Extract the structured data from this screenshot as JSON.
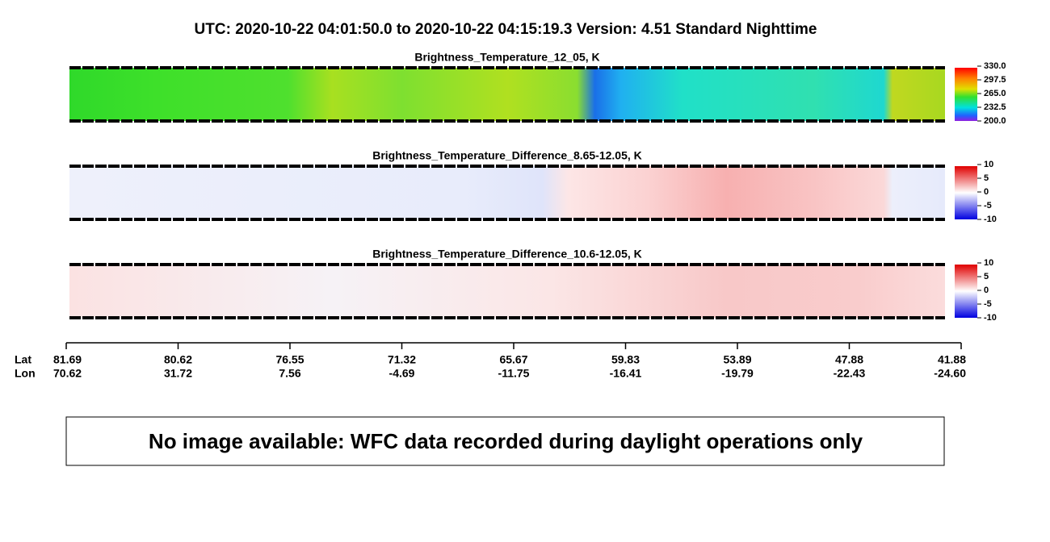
{
  "header": {
    "title": "UTC:  2020-10-22   04:01:50.0  to  2020-10-22   04:15:19.3    Version: 4.51  Standard Nighttime"
  },
  "panels": [
    {
      "title": "Brightness_Temperature_12_05, K",
      "colorbar_labels": [
        "330.0",
        "297.5",
        "265.0",
        "232.5",
        "200.0"
      ]
    },
    {
      "title": "Brightness_Temperature_Difference_8.65-12.05, K",
      "colorbar_labels": [
        "10",
        "5",
        "0",
        "-5",
        "-10"
      ]
    },
    {
      "title": "Brightness_Temperature_Difference_10.6-12.05, K",
      "colorbar_labels": [
        "10",
        "5",
        "0",
        "-5",
        "-10"
      ]
    }
  ],
  "axis": {
    "lat_label": "Lat",
    "lon_label": "Lon",
    "lat": [
      "81.69",
      "80.62",
      "76.55",
      "71.32",
      "65.67",
      "59.83",
      "53.89",
      "47.88",
      "41.88"
    ],
    "lon": [
      "70.62",
      "31.72",
      "7.56",
      "-4.69",
      "-11.75",
      "-16.41",
      "-19.79",
      "-22.43",
      "-24.60"
    ]
  },
  "message": "No image available: WFC data recorded during daylight operations only"
}
